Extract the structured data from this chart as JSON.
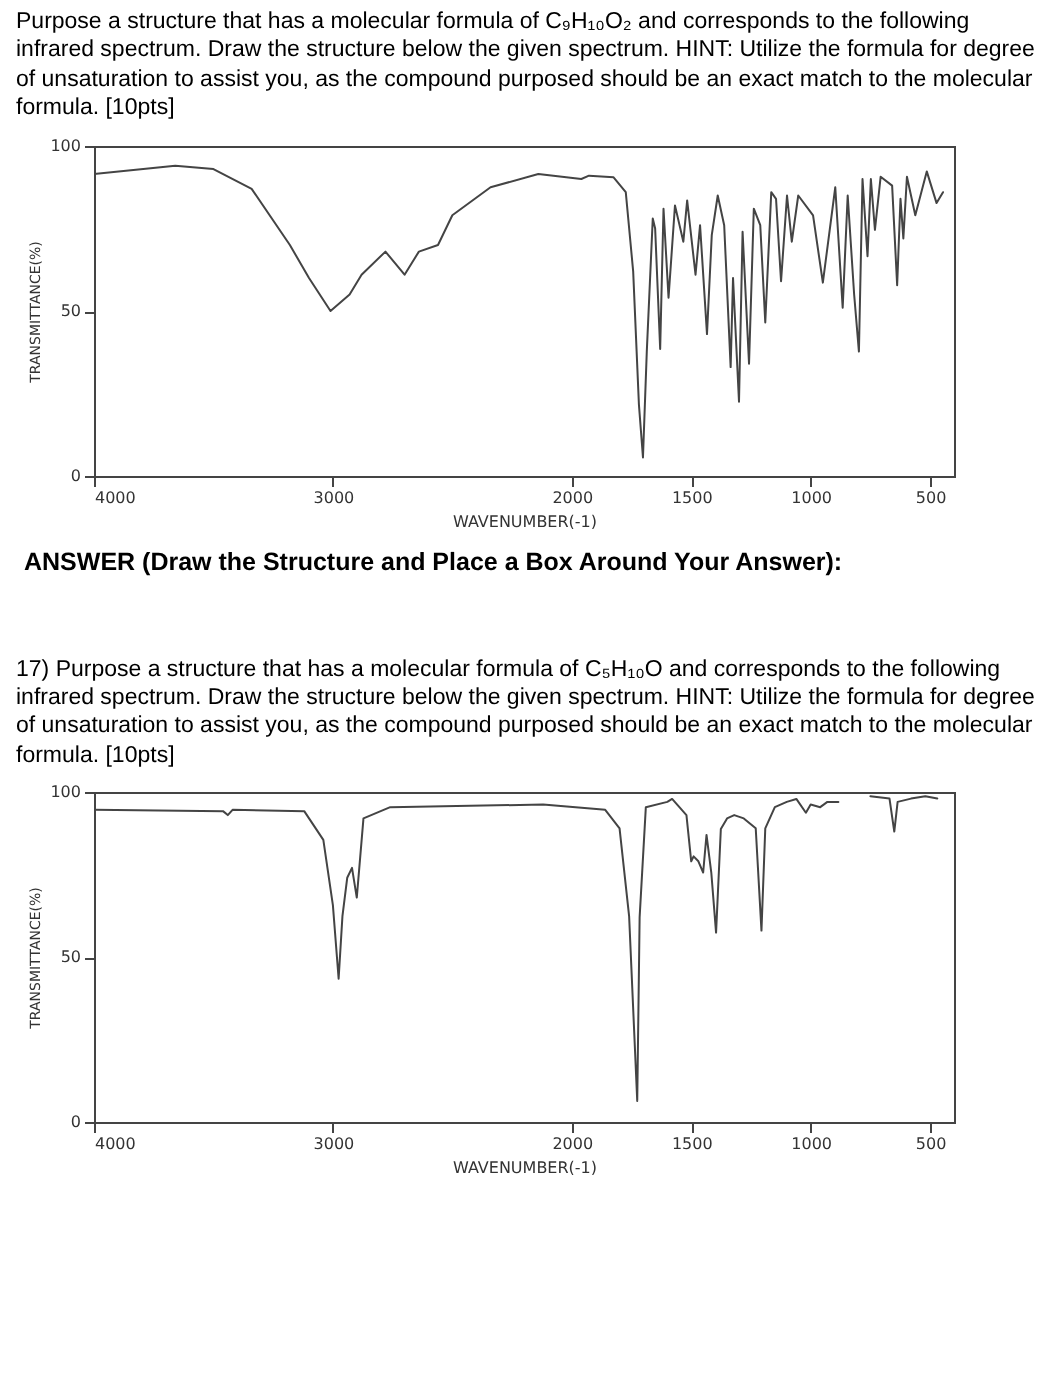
{
  "chart_data": [
    {
      "type": "line",
      "title": "Purpose a structure that has a molecular formula of C₉H₁₀O₂ and corresponds to the following infrared spectrum. Draw the structure below the given spectrum. HINT: Utilize the formula for degree of unsaturation to assist you, as the compound purposed should be an exact match to the molecular formula. [10pts]",
      "xlabel": "WAVENUMBER(-1)",
      "ylabel": "TRANSMITTANCE(%)",
      "color": "#444444",
      "x": [
        4000,
        3660,
        3500,
        3340,
        3180,
        3100,
        3010,
        2930,
        2880,
        2780,
        2700,
        2640,
        2560,
        2500,
        2340,
        2140,
        1960,
        1928,
        1825,
        1774,
        1743,
        1719,
        1702,
        1686,
        1661,
        1651,
        1630,
        1616,
        1595,
        1568,
        1533,
        1517,
        1482,
        1463,
        1434,
        1414,
        1389,
        1362,
        1335,
        1325,
        1300,
        1285,
        1258,
        1238,
        1211,
        1190,
        1165,
        1145,
        1124,
        1099,
        1079,
        1052,
        990,
        949,
        897,
        866,
        845,
        818,
        798,
        783,
        762,
        748,
        731,
        707,
        659,
        638,
        624,
        612,
        597,
        562,
        514,
        473,
        446
      ],
      "values": [
        91.5,
        94,
        93,
        87,
        70,
        60,
        50,
        55,
        61,
        68,
        61,
        68,
        70,
        79,
        87.5,
        91.5,
        90,
        91,
        90.5,
        86,
        62,
        21.7,
        5.6,
        37.7,
        78,
        75,
        38.5,
        81,
        54,
        82,
        71,
        83.5,
        61,
        76,
        43,
        73,
        85,
        76,
        33,
        60,
        22.5,
        74,
        34,
        81,
        76,
        46.5,
        86,
        84,
        59,
        85,
        71,
        85,
        79,
        58.6,
        87.5,
        51,
        85,
        55,
        37.7,
        90,
        66.6,
        90,
        74.6,
        90.7,
        88,
        57.8,
        84,
        72,
        90.7,
        79,
        92.3,
        82.7,
        86
      ],
      "xlim": [
        4000,
        400
      ],
      "ylim": [
        0,
        100
      ],
      "xticks": [
        4000,
        3000,
        2000,
        1500,
        1000,
        500
      ],
      "yticks": [
        0,
        50,
        100
      ],
      "annotations": [
        "ANSWER (Draw the Structure and Place a Box Around Your Answer):"
      ]
    },
    {
      "type": "line",
      "title": "17) Purpose a structure that has a molecular formula of C₅H₁₀O and corresponds to the following infrared spectrum. Draw the structure below the given spectrum. HINT: Utilize the formula for degree of unsaturation to assist you, as the compound purposed should be an exact match to the molecular formula. [10pts]",
      "xlabel": "WAVENUMBER(-1)",
      "ylabel": "TRANSMITTANCE(%)",
      "color": "#444444",
      "x": [
        4000,
        3460,
        3440,
        3420,
        3120,
        3040,
        3000,
        2976,
        2960,
        2940,
        2920,
        2900,
        2872,
        2760,
        2120,
        1860,
        1800,
        1760,
        1740,
        1726,
        1716,
        1690,
        1600,
        1580,
        1520,
        1500,
        1490,
        1470,
        1450,
        1436,
        1416,
        1396,
        1376,
        1350,
        1320,
        1280,
        1230,
        1206,
        1190,
        1150,
        1100,
        1060,
        1020,
        1000,
        960,
        930,
        884,
        820,
        750,
        670,
        650,
        636,
        580,
        520,
        470
      ],
      "values": [
        94.6,
        94.2,
        93,
        94.6,
        94.2,
        85.5,
        65.7,
        43.4,
        62.4,
        74,
        77,
        68,
        92,
        95.4,
        96.2,
        94.6,
        89,
        62.4,
        29.4,
        6.4,
        62,
        95.4,
        97,
        97.9,
        93,
        79,
        80.5,
        79,
        75.6,
        87,
        75.6,
        57.4,
        88.8,
        92,
        93,
        92,
        89,
        58,
        89,
        95.4,
        97,
        97.9,
        93.7,
        96.2,
        95.4,
        97,
        97,
        null,
        98.7,
        98,
        88,
        97,
        98,
        98.7,
        98
      ],
      "xlim": [
        4000,
        400
      ],
      "ylim": [
        0,
        100
      ],
      "xticks": [
        4000,
        3000,
        2000,
        1500,
        1000,
        500
      ],
      "yticks": [
        0,
        50,
        100
      ]
    }
  ]
}
